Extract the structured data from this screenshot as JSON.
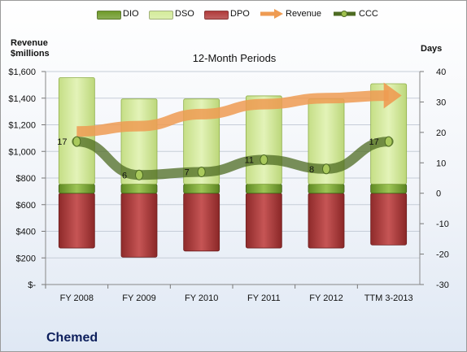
{
  "legend": [
    {
      "name": "DIO",
      "color": "#6f9a2a"
    },
    {
      "name": "DSO",
      "color": "#d4eb9b"
    },
    {
      "name": "DPO",
      "color": "#b03a3a"
    },
    {
      "name": "Revenue",
      "color": "#ee9b52"
    },
    {
      "name": "CCC",
      "color": "#4d6b22"
    }
  ],
  "left_axis_title": "Revenue\n$millions",
  "right_axis_title": "Days",
  "company": "Chemed",
  "chart_data": {
    "type": "bar",
    "title": "12-Month Periods",
    "categories": [
      "FY 2008",
      "FY 2009",
      "FY 2010",
      "FY 2011",
      "FY 2012",
      "TTM 3-2013"
    ],
    "left_axis": {
      "ylabel": "Revenue $millions",
      "ylim": [
        0,
        1600
      ],
      "ticks": [
        0,
        200,
        400,
        600,
        800,
        1000,
        1200,
        1400,
        1600
      ],
      "tick_labels": [
        "$-",
        "$200",
        "$400",
        "$600",
        "$800",
        "$1,000",
        "$1,200",
        "$1,400",
        "$1,600"
      ]
    },
    "right_axis": {
      "ylabel": "Days",
      "ylim": [
        -30,
        40
      ],
      "ticks": [
        -30,
        -20,
        -10,
        0,
        10,
        20,
        30,
        40
      ],
      "tick_labels": [
        "-30",
        "-20",
        "-10",
        "0",
        "10",
        "20",
        "30",
        "40"
      ]
    },
    "series": [
      {
        "name": "DIO",
        "axis": "right",
        "stack": "positive",
        "values": [
          3,
          3,
          3,
          3,
          3,
          3
        ]
      },
      {
        "name": "DSO",
        "axis": "right",
        "stack": "positive",
        "values": [
          35,
          28,
          28,
          29,
          28,
          33
        ]
      },
      {
        "name": "DPO",
        "axis": "right",
        "stack": "negative",
        "values": [
          -18,
          -21,
          -19,
          -18,
          -18,
          -17
        ]
      },
      {
        "name": "Revenue",
        "axis": "left",
        "type": "line",
        "values": [
          1150,
          1190,
          1280,
          1355,
          1400,
          1420
        ]
      },
      {
        "name": "CCC",
        "axis": "right",
        "type": "line",
        "values": [
          17,
          6,
          7,
          11,
          8,
          17
        ],
        "data_labels": [
          "17",
          "6",
          "7",
          "11",
          "8",
          "17"
        ]
      }
    ],
    "grid": true,
    "legend_position": "top"
  }
}
